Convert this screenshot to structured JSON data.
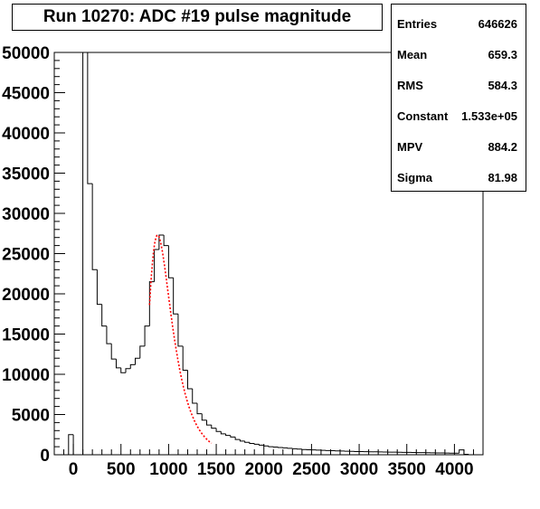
{
  "title": "Run 10270: ADC #19 pulse magnitude",
  "stats": [
    {
      "label": "Entries",
      "value": "646626"
    },
    {
      "label": "Mean",
      "value": "659.3"
    },
    {
      "label": "RMS",
      "value": "584.3"
    },
    {
      "label": "Constant",
      "value": "1.533e+05"
    },
    {
      "label": "MPV",
      "value": "884.2"
    },
    {
      "label": "Sigma",
      "value": "81.98"
    }
  ],
  "chart_data": {
    "type": "histogram",
    "title": "Run 10270: ADC #19 pulse magnitude",
    "xlabel": "",
    "ylabel": "",
    "xlim": [
      -200,
      4300
    ],
    "ylim": [
      0,
      50000
    ],
    "x_ticks": [
      "0",
      "500",
      "1000",
      "1500",
      "2000",
      "2500",
      "3000",
      "3500",
      "4000"
    ],
    "y_ticks": [
      "0",
      "5000",
      "10000",
      "15000",
      "20000",
      "25000",
      "30000",
      "35000",
      "40000",
      "45000",
      "50000"
    ],
    "grid": false,
    "bin_width": 50,
    "bins": [
      {
        "x": -25,
        "y": 2500
      },
      {
        "x": 25,
        "y": 0
      },
      {
        "x": 75,
        "y": 0
      },
      {
        "x": 125,
        "y": 50000
      },
      {
        "x": 175,
        "y": 33700
      },
      {
        "x": 225,
        "y": 23000
      },
      {
        "x": 275,
        "y": 18700
      },
      {
        "x": 325,
        "y": 16000
      },
      {
        "x": 375,
        "y": 13800
      },
      {
        "x": 425,
        "y": 11900
      },
      {
        "x": 475,
        "y": 10800
      },
      {
        "x": 525,
        "y": 10200
      },
      {
        "x": 575,
        "y": 10700
      },
      {
        "x": 625,
        "y": 11200
      },
      {
        "x": 675,
        "y": 12000
      },
      {
        "x": 725,
        "y": 13500
      },
      {
        "x": 775,
        "y": 16000
      },
      {
        "x": 825,
        "y": 21500
      },
      {
        "x": 875,
        "y": 25500
      },
      {
        "x": 925,
        "y": 27300
      },
      {
        "x": 975,
        "y": 26000
      },
      {
        "x": 1025,
        "y": 22000
      },
      {
        "x": 1075,
        "y": 17500
      },
      {
        "x": 1125,
        "y": 13500
      },
      {
        "x": 1175,
        "y": 10500
      },
      {
        "x": 1225,
        "y": 8200
      },
      {
        "x": 1275,
        "y": 6400
      },
      {
        "x": 1325,
        "y": 5100
      },
      {
        "x": 1375,
        "y": 4300
      },
      {
        "x": 1425,
        "y": 3700
      },
      {
        "x": 1475,
        "y": 3300
      },
      {
        "x": 1525,
        "y": 2900
      },
      {
        "x": 1575,
        "y": 2600
      },
      {
        "x": 1625,
        "y": 2400
      },
      {
        "x": 1675,
        "y": 2200
      },
      {
        "x": 1725,
        "y": 1900
      },
      {
        "x": 1775,
        "y": 1700
      },
      {
        "x": 1825,
        "y": 1550
      },
      {
        "x": 1875,
        "y": 1400
      },
      {
        "x": 1925,
        "y": 1300
      },
      {
        "x": 1975,
        "y": 1200
      },
      {
        "x": 2025,
        "y": 1100
      },
      {
        "x": 2075,
        "y": 1000
      },
      {
        "x": 2125,
        "y": 950
      },
      {
        "x": 2175,
        "y": 900
      },
      {
        "x": 2225,
        "y": 850
      },
      {
        "x": 2275,
        "y": 800
      },
      {
        "x": 2325,
        "y": 750
      },
      {
        "x": 2375,
        "y": 700
      },
      {
        "x": 2425,
        "y": 650
      },
      {
        "x": 2475,
        "y": 620
      },
      {
        "x": 2525,
        "y": 600
      },
      {
        "x": 2575,
        "y": 580
      },
      {
        "x": 2625,
        "y": 550
      },
      {
        "x": 2675,
        "y": 520
      },
      {
        "x": 2725,
        "y": 500
      },
      {
        "x": 2775,
        "y": 480
      },
      {
        "x": 2825,
        "y": 460
      },
      {
        "x": 2875,
        "y": 440
      },
      {
        "x": 2925,
        "y": 420
      },
      {
        "x": 2975,
        "y": 400
      },
      {
        "x": 3025,
        "y": 390
      },
      {
        "x": 3075,
        "y": 380
      },
      {
        "x": 3125,
        "y": 370
      },
      {
        "x": 3175,
        "y": 360
      },
      {
        "x": 3225,
        "y": 350
      },
      {
        "x": 3275,
        "y": 340
      },
      {
        "x": 3325,
        "y": 330
      },
      {
        "x": 3375,
        "y": 320
      },
      {
        "x": 3425,
        "y": 310
      },
      {
        "x": 3475,
        "y": 300
      },
      {
        "x": 3525,
        "y": 290
      },
      {
        "x": 3575,
        "y": 280
      },
      {
        "x": 3625,
        "y": 270
      },
      {
        "x": 3675,
        "y": 260
      },
      {
        "x": 3725,
        "y": 250
      },
      {
        "x": 3775,
        "y": 240
      },
      {
        "x": 3825,
        "y": 230
      },
      {
        "x": 3875,
        "y": 220
      },
      {
        "x": 3925,
        "y": 210
      },
      {
        "x": 3975,
        "y": 200
      },
      {
        "x": 4025,
        "y": 190
      },
      {
        "x": 4075,
        "y": 600
      },
      {
        "x": 4125,
        "y": 50
      }
    ],
    "fit": {
      "function": "landau",
      "color": "#ff0000",
      "constant": 153300,
      "mpv": 884.2,
      "sigma": 81.98,
      "x_range": [
        800,
        1450
      ]
    },
    "histogram_color": "#000000",
    "stats_box_placement": "top-right"
  }
}
